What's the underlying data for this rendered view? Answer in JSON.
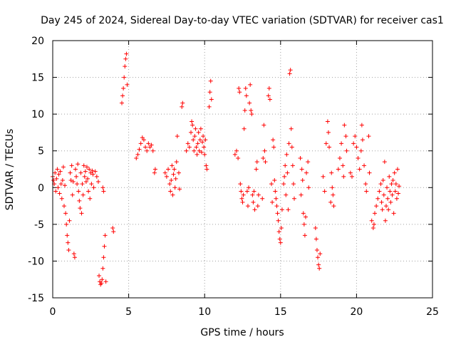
{
  "chart_data": {
    "type": "scatter",
    "title": "Day 245 of 2024, Sidereal Day-to-day VTEC variation (SDTVAR) for receiver cas1",
    "xlabel": "GPS time / hours",
    "ylabel": "SDTVAR / TECUs",
    "xlim": [
      0,
      25
    ],
    "ylim": [
      -15,
      20
    ],
    "xticks": [
      0,
      5,
      10,
      15,
      20,
      25
    ],
    "yticks": [
      -15,
      -10,
      -5,
      0,
      5,
      10,
      15,
      20
    ],
    "grid": true,
    "marker": "+",
    "color": "#ff0000",
    "series": [
      {
        "name": "SDTVAR",
        "points": [
          [
            0.0,
            1.5
          ],
          [
            0.05,
            1.0
          ],
          [
            0.1,
            0.5
          ],
          [
            0.15,
            2.0
          ],
          [
            0.2,
            -0.5
          ],
          [
            0.25,
            1.2
          ],
          [
            0.3,
            2.5
          ],
          [
            0.35,
            0.0
          ],
          [
            0.4,
            1.8
          ],
          [
            0.45,
            -0.8
          ],
          [
            0.5,
            2.2
          ],
          [
            0.55,
            0.5
          ],
          [
            0.6,
            -1.5
          ],
          [
            0.65,
            1.0
          ],
          [
            0.7,
            2.8
          ],
          [
            0.75,
            -2.5
          ],
          [
            0.8,
            0.3
          ],
          [
            0.85,
            -3.5
          ],
          [
            0.9,
            -5.0
          ],
          [
            0.95,
            -6.5
          ],
          [
            1.0,
            -7.5
          ],
          [
            1.05,
            -8.5
          ],
          [
            1.1,
            -4.5
          ],
          [
            1.15,
            2.0
          ],
          [
            1.2,
            1.0
          ],
          [
            1.25,
            3.0
          ],
          [
            1.3,
            -1.0
          ],
          [
            1.35,
            0.8
          ],
          [
            1.4,
            -9.0
          ],
          [
            1.45,
            -9.5
          ],
          [
            1.5,
            2.5
          ],
          [
            1.55,
            1.5
          ],
          [
            1.6,
            0.5
          ],
          [
            1.65,
            3.2
          ],
          [
            1.7,
            -0.5
          ],
          [
            1.75,
            -1.8
          ],
          [
            1.8,
            -2.8
          ],
          [
            1.85,
            2.0
          ],
          [
            1.9,
            -3.5
          ],
          [
            1.95,
            0.5
          ],
          [
            2.0,
            -1.0
          ],
          [
            2.05,
            3.0
          ],
          [
            2.1,
            1.5
          ],
          [
            2.15,
            2.2
          ],
          [
            2.2,
            0.8
          ],
          [
            2.25,
            2.8
          ],
          [
            2.3,
            1.2
          ],
          [
            2.35,
            -0.5
          ],
          [
            2.4,
            2.5
          ],
          [
            2.45,
            -1.5
          ],
          [
            2.5,
            2.0
          ],
          [
            2.55,
            0.5
          ],
          [
            2.6,
            2.3
          ],
          [
            2.65,
            1.8
          ],
          [
            2.7,
            0.0
          ],
          [
            2.8,
            2.2
          ],
          [
            2.9,
            1.5
          ],
          [
            3.0,
            0.8
          ],
          [
            3.05,
            -12.0
          ],
          [
            3.1,
            -12.8
          ],
          [
            3.15,
            -13.2
          ],
          [
            3.2,
            -13.0
          ],
          [
            3.25,
            -12.5
          ],
          [
            3.3,
            -11.0
          ],
          [
            3.35,
            -9.5
          ],
          [
            3.4,
            -8.0
          ],
          [
            3.45,
            -6.5
          ],
          [
            3.5,
            -12.8
          ],
          [
            3.3,
            0.0
          ],
          [
            3.35,
            -0.5
          ],
          [
            3.95,
            -5.5
          ],
          [
            4.0,
            -6.0
          ],
          [
            4.55,
            11.5
          ],
          [
            4.6,
            12.5
          ],
          [
            4.65,
            13.5
          ],
          [
            4.7,
            15.0
          ],
          [
            4.75,
            16.5
          ],
          [
            4.8,
            17.5
          ],
          [
            4.85,
            18.2
          ],
          [
            4.9,
            14.0
          ],
          [
            5.5,
            4.0
          ],
          [
            5.6,
            4.5
          ],
          [
            5.7,
            5.2
          ],
          [
            5.8,
            6.0
          ],
          [
            5.9,
            6.8
          ],
          [
            6.0,
            6.5
          ],
          [
            6.1,
            5.5
          ],
          [
            6.2,
            5.0
          ],
          [
            6.3,
            6.0
          ],
          [
            6.4,
            5.5
          ],
          [
            6.5,
            5.8
          ],
          [
            6.6,
            5.0
          ],
          [
            6.7,
            2.0
          ],
          [
            6.75,
            2.5
          ],
          [
            7.4,
            2.0
          ],
          [
            7.5,
            1.5
          ],
          [
            7.6,
            2.5
          ],
          [
            7.7,
            0.5
          ],
          [
            7.75,
            -0.5
          ],
          [
            7.8,
            1.0
          ],
          [
            7.85,
            3.0
          ],
          [
            7.9,
            -1.0
          ],
          [
            7.95,
            1.8
          ],
          [
            8.0,
            2.5
          ],
          [
            8.05,
            0.0
          ],
          [
            8.1,
            1.2
          ],
          [
            8.15,
            3.5
          ],
          [
            8.2,
            7.0
          ],
          [
            8.3,
            2.0
          ],
          [
            8.35,
            -0.2
          ],
          [
            8.5,
            11.0
          ],
          [
            8.55,
            11.5
          ],
          [
            8.8,
            5.0
          ],
          [
            8.9,
            6.0
          ],
          [
            9.0,
            5.5
          ],
          [
            9.1,
            7.5
          ],
          [
            9.15,
            9.0
          ],
          [
            9.2,
            8.5
          ],
          [
            9.25,
            6.5
          ],
          [
            9.3,
            5.0
          ],
          [
            9.35,
            7.0
          ],
          [
            9.4,
            8.0
          ],
          [
            9.45,
            5.5
          ],
          [
            9.5,
            4.5
          ],
          [
            9.55,
            6.0
          ],
          [
            9.6,
            7.5
          ],
          [
            9.65,
            5.0
          ],
          [
            9.7,
            6.5
          ],
          [
            9.75,
            8.0
          ],
          [
            9.8,
            4.8
          ],
          [
            9.85,
            6.2
          ],
          [
            9.9,
            7.0
          ],
          [
            9.95,
            5.5
          ],
          [
            10.0,
            4.5
          ],
          [
            10.05,
            6.5
          ],
          [
            10.1,
            3.0
          ],
          [
            10.15,
            2.5
          ],
          [
            10.3,
            11.0
          ],
          [
            10.35,
            13.0
          ],
          [
            10.4,
            14.5
          ],
          [
            10.45,
            12.0
          ],
          [
            12.0,
            4.5
          ],
          [
            12.1,
            5.0
          ],
          [
            12.2,
            4.0
          ],
          [
            12.25,
            13.5
          ],
          [
            12.3,
            13.0
          ],
          [
            12.35,
            0.5
          ],
          [
            12.4,
            -0.5
          ],
          [
            12.45,
            -1.5
          ],
          [
            12.5,
            -2.0
          ],
          [
            12.55,
            -1.0
          ],
          [
            12.6,
            8.0
          ],
          [
            12.65,
            10.5
          ],
          [
            12.7,
            13.5
          ],
          [
            12.75,
            12.5
          ],
          [
            12.8,
            -0.5
          ],
          [
            12.85,
            -2.5
          ],
          [
            12.9,
            0.0
          ],
          [
            12.95,
            11.5
          ],
          [
            13.0,
            14.0
          ],
          [
            13.05,
            10.5
          ],
          [
            13.1,
            10.0
          ],
          [
            13.15,
            -1.0
          ],
          [
            13.2,
            -2.0
          ],
          [
            13.25,
            -0.5
          ],
          [
            13.3,
            -3.0
          ],
          [
            13.4,
            2.5
          ],
          [
            13.45,
            3.5
          ],
          [
            13.5,
            -2.5
          ],
          [
            13.55,
            -1.0
          ],
          [
            13.8,
            -1.5
          ],
          [
            13.85,
            4.0
          ],
          [
            13.9,
            8.5
          ],
          [
            13.95,
            5.0
          ],
          [
            14.0,
            3.5
          ],
          [
            14.2,
            12.5
          ],
          [
            14.25,
            13.5
          ],
          [
            14.3,
            12.0
          ],
          [
            14.4,
            0.5
          ],
          [
            14.45,
            -2.0
          ],
          [
            14.5,
            6.5
          ],
          [
            14.55,
            5.5
          ],
          [
            14.6,
            1.0
          ],
          [
            14.65,
            -0.5
          ],
          [
            14.7,
            -1.5
          ],
          [
            14.75,
            -2.5
          ],
          [
            14.8,
            -3.5
          ],
          [
            14.85,
            -4.5
          ],
          [
            14.9,
            -6.0
          ],
          [
            14.95,
            -7.0
          ],
          [
            15.0,
            -7.5
          ],
          [
            15.05,
            -5.5
          ],
          [
            15.1,
            -3.0
          ],
          [
            15.2,
            0.5
          ],
          [
            15.25,
            1.5
          ],
          [
            15.3,
            3.0
          ],
          [
            15.35,
            -1.0
          ],
          [
            15.4,
            4.5
          ],
          [
            15.45,
            2.0
          ],
          [
            15.5,
            -3.0
          ],
          [
            15.55,
            6.0
          ],
          [
            15.6,
            15.5
          ],
          [
            15.65,
            16.0
          ],
          [
            15.7,
            8.0
          ],
          [
            15.75,
            5.5
          ],
          [
            15.8,
            3.0
          ],
          [
            15.85,
            0.5
          ],
          [
            15.9,
            -1.5
          ],
          [
            16.3,
            4.0
          ],
          [
            16.35,
            -1.0
          ],
          [
            16.4,
            2.5
          ],
          [
            16.45,
            1.0
          ],
          [
            16.5,
            -3.5
          ],
          [
            16.55,
            -5.0
          ],
          [
            16.6,
            -6.5
          ],
          [
            16.65,
            -4.0
          ],
          [
            16.7,
            2.0
          ],
          [
            16.8,
            3.5
          ],
          [
            16.85,
            0.0
          ],
          [
            17.3,
            -5.5
          ],
          [
            17.35,
            -7.0
          ],
          [
            17.4,
            -8.5
          ],
          [
            17.45,
            -9.5
          ],
          [
            17.5,
            -10.5
          ],
          [
            17.55,
            -11.0
          ],
          [
            17.6,
            -9.0
          ],
          [
            17.8,
            1.5
          ],
          [
            17.9,
            -0.5
          ],
          [
            18.0,
            6.0
          ],
          [
            18.1,
            9.0
          ],
          [
            18.15,
            7.5
          ],
          [
            18.2,
            5.5
          ],
          [
            18.3,
            -2.0
          ],
          [
            18.35,
            2.0
          ],
          [
            18.4,
            0.0
          ],
          [
            18.45,
            -1.0
          ],
          [
            18.5,
            -2.5
          ],
          [
            18.8,
            2.5
          ],
          [
            18.9,
            4.0
          ],
          [
            19.0,
            6.0
          ],
          [
            19.1,
            3.0
          ],
          [
            19.15,
            1.5
          ],
          [
            19.2,
            8.5
          ],
          [
            19.3,
            7.0
          ],
          [
            19.35,
            5.0
          ],
          [
            19.6,
            2.0
          ],
          [
            19.7,
            1.5
          ],
          [
            19.8,
            6.0
          ],
          [
            19.9,
            7.0
          ],
          [
            20.0,
            5.5
          ],
          [
            20.1,
            4.0
          ],
          [
            20.2,
            2.5
          ],
          [
            20.3,
            5.0
          ],
          [
            20.35,
            8.5
          ],
          [
            20.4,
            6.5
          ],
          [
            20.5,
            3.0
          ],
          [
            20.6,
            0.5
          ],
          [
            20.65,
            -0.5
          ],
          [
            20.8,
            7.0
          ],
          [
            20.85,
            2.0
          ],
          [
            21.0,
            -4.5
          ],
          [
            21.1,
            -5.5
          ],
          [
            21.15,
            -5.0
          ],
          [
            21.2,
            -3.5
          ],
          [
            21.3,
            -2.5
          ],
          [
            21.4,
            -1.5
          ],
          [
            21.5,
            -0.5
          ],
          [
            21.6,
            0.5
          ],
          [
            21.65,
            -2.0
          ],
          [
            21.7,
            -3.0
          ],
          [
            21.75,
            1.0
          ],
          [
            21.8,
            -1.0
          ],
          [
            21.85,
            3.5
          ],
          [
            21.9,
            -4.5
          ],
          [
            21.95,
            -2.5
          ],
          [
            22.0,
            0.0
          ],
          [
            22.05,
            -1.5
          ],
          [
            22.1,
            -3.0
          ],
          [
            22.15,
            1.5
          ],
          [
            22.2,
            -0.5
          ],
          [
            22.25,
            -2.0
          ],
          [
            22.3,
            0.5
          ],
          [
            22.35,
            -1.0
          ],
          [
            22.4,
            1.0
          ],
          [
            22.45,
            -3.5
          ],
          [
            22.5,
            2.0
          ],
          [
            22.55,
            -0.5
          ],
          [
            22.6,
            0.5
          ],
          [
            22.65,
            -1.5
          ],
          [
            22.7,
            2.5
          ],
          [
            22.75,
            -0.8
          ],
          [
            22.8,
            0.2
          ]
        ]
      }
    ]
  }
}
